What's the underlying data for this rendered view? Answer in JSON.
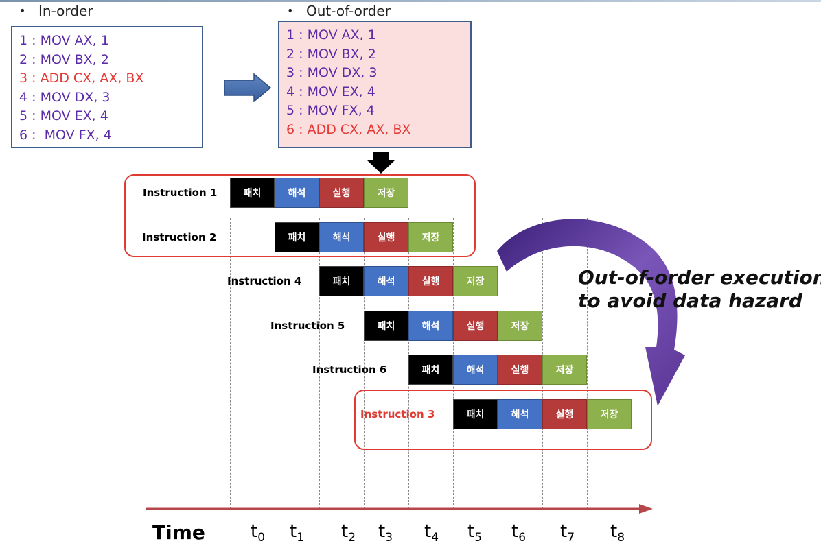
{
  "in_order": {
    "heading": "In-order",
    "lines": [
      {
        "text": "1 : MOV AX, 1",
        "color": "#5b2ba8"
      },
      {
        "text": "2 : MOV BX, 2",
        "color": "#5b2ba8"
      },
      {
        "text": "3 : ADD CX, AX, BX",
        "color": "#e53935"
      },
      {
        "text": "4 : MOV DX, 3",
        "color": "#5b2ba8"
      },
      {
        "text": "5 : MOV EX, 4",
        "color": "#5b2ba8"
      },
      {
        "text": "6 :  MOV FX, 4",
        "color": "#5b2ba8"
      }
    ]
  },
  "out_of_order": {
    "heading": "Out-of-order",
    "lines": [
      {
        "text": "1 : MOV AX, 1",
        "color": "#5b2ba8"
      },
      {
        "text": "2 : MOV BX, 2",
        "color": "#5b2ba8"
      },
      {
        "text": "3 : MOV DX, 3",
        "color": "#5b2ba8"
      },
      {
        "text": "4 : MOV EX, 4",
        "color": "#5b2ba8"
      },
      {
        "text": "5 : MOV FX, 4",
        "color": "#5b2ba8"
      },
      {
        "text": "6 : ADD CX, AX, BX",
        "color": "#e53935"
      }
    ]
  },
  "stages": [
    "패치",
    "해석",
    "실행",
    "저장"
  ],
  "pipeline": [
    {
      "label": "Instruction 1",
      "start": 0,
      "highlight": false
    },
    {
      "label": "Instruction 2",
      "start": 1,
      "highlight": false
    },
    {
      "label": "Instruction 4",
      "start": 2,
      "highlight": false
    },
    {
      "label": "Instruction 5",
      "start": 3,
      "highlight": false
    },
    {
      "label": "Instruction 6",
      "start": 4,
      "highlight": false
    },
    {
      "label": "Instruction 3",
      "start": 5,
      "highlight": true
    }
  ],
  "time": {
    "label": "Time",
    "ticks": [
      "0",
      "1",
      "2",
      "3",
      "4",
      "5",
      "6",
      "7",
      "8"
    ],
    "tick_prefix": "t"
  },
  "annotation": {
    "line1": "Out-of-order execution",
    "line2": "to avoid data hazard"
  },
  "colors": {
    "purple_text": "#5b2ba8",
    "red_text": "#e53935",
    "highlight_border": "#e03b32",
    "fetch": "#000000",
    "decode": "#4472c4",
    "execute": "#b53b3b",
    "store": "#8db14c"
  }
}
